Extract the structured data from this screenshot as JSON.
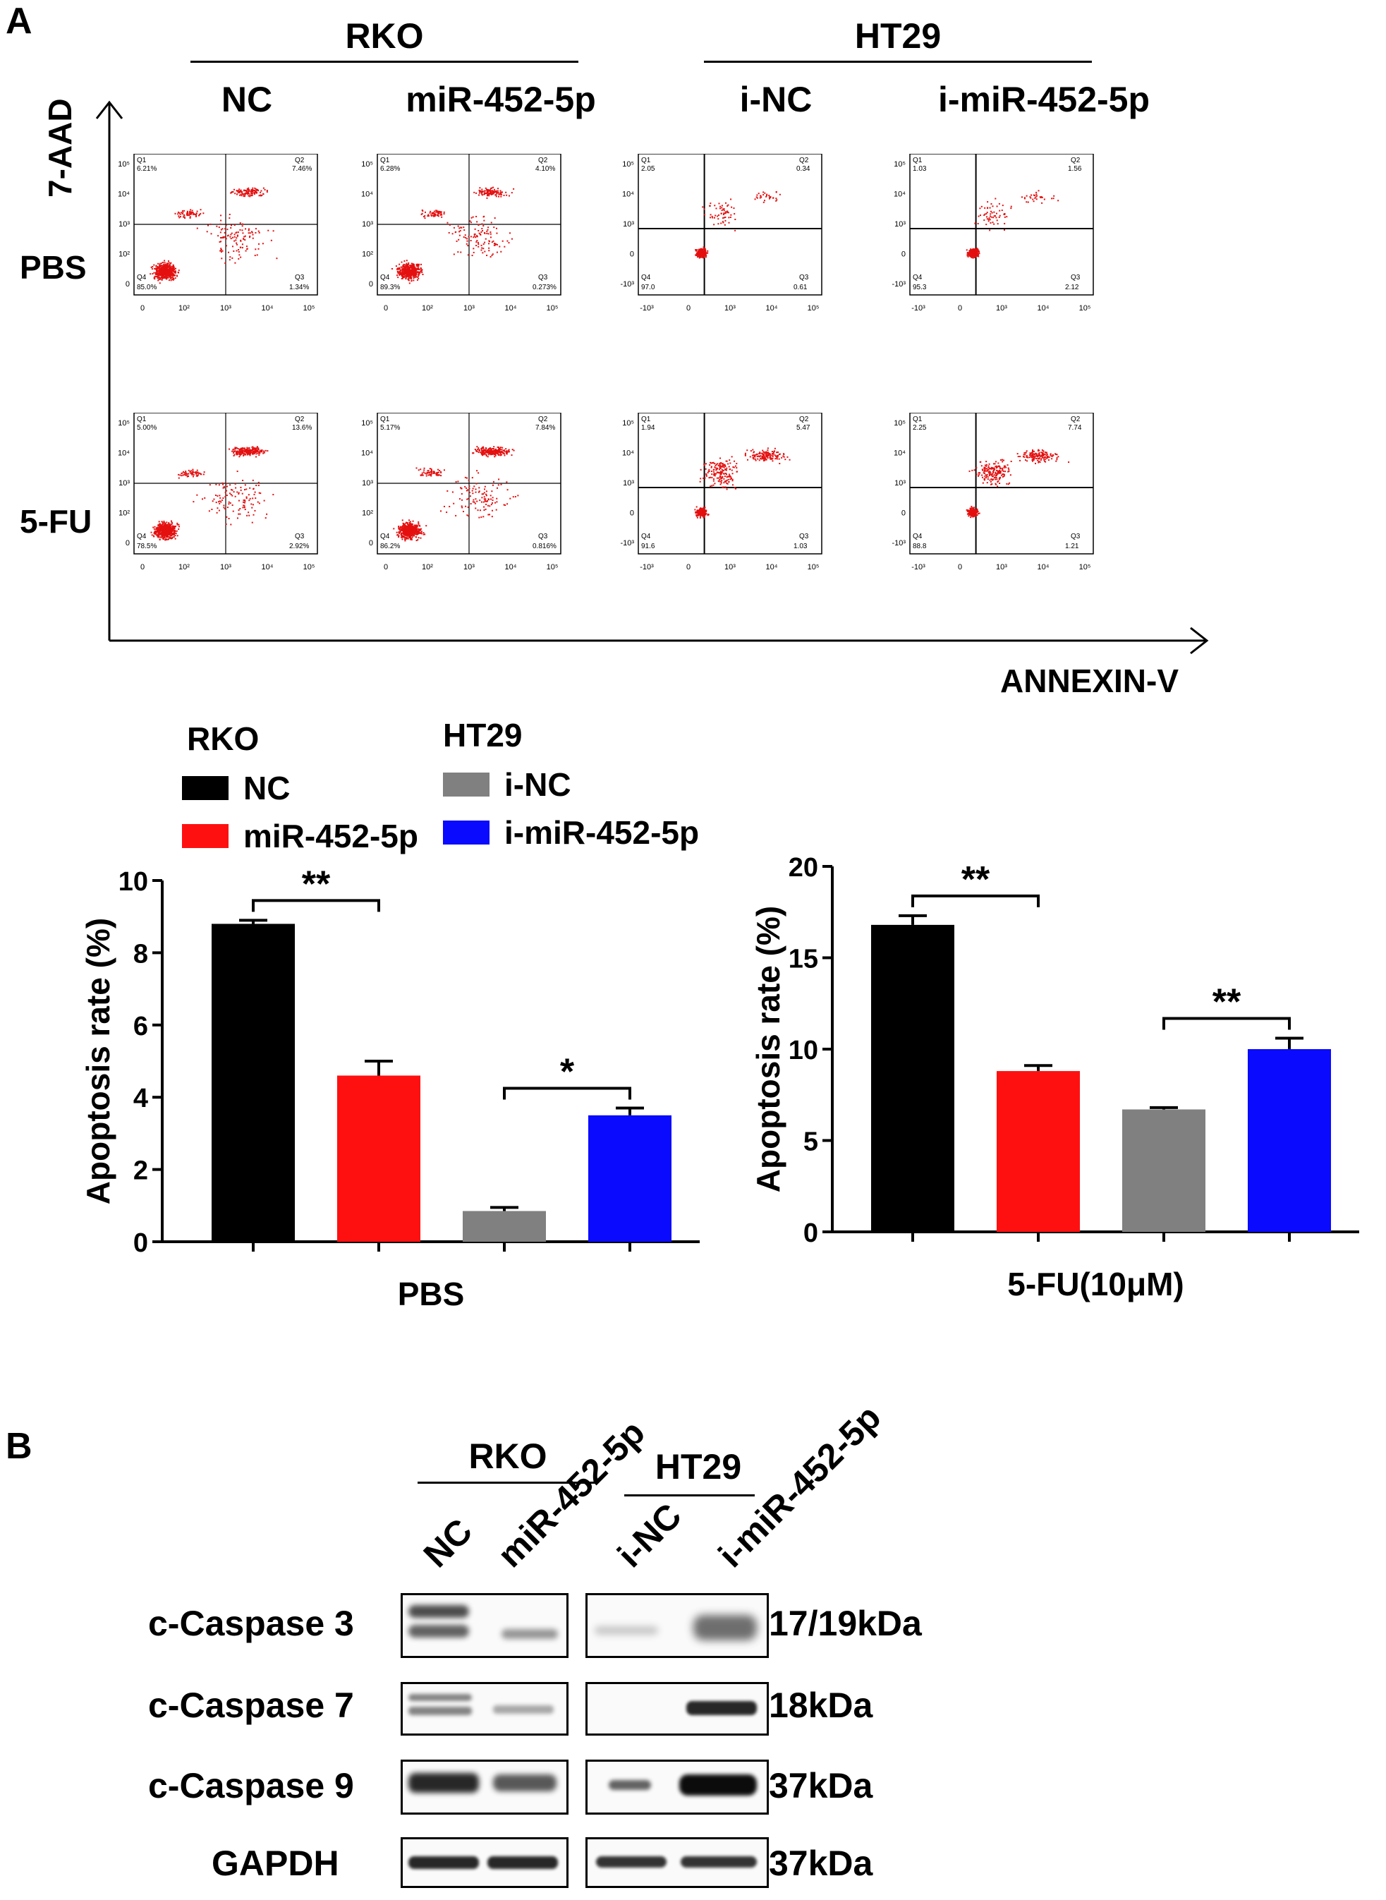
{
  "panel_a": {
    "label": "A",
    "groups": [
      {
        "name": "RKO",
        "conditions": [
          "NC",
          "miR-452-5p"
        ]
      },
      {
        "name": "HT29",
        "conditions": [
          "i-NC",
          "i-miR-452-5p"
        ]
      }
    ],
    "row_labels": [
      "PBS",
      "5-FU"
    ],
    "y_axis_label": "7-AAD",
    "x_axis_label": "ANNEXIN-V",
    "flow_plots": [
      {
        "row": "PBS",
        "col": "NC",
        "q1": "6.21%",
        "q2": "7.46%",
        "q3": "1.34%",
        "q4": "85.0%"
      },
      {
        "row": "PBS",
        "col": "miR-452-5p",
        "q1": "6.28%",
        "q2": "4.10%",
        "q3": "0.273%",
        "q4": "89.3%"
      },
      {
        "row": "PBS",
        "col": "i-NC",
        "q1": "2.05",
        "q2": "0.34",
        "q3": "0.61",
        "q4": "97.0"
      },
      {
        "row": "PBS",
        "col": "i-miR-452-5p",
        "q1": "1.03",
        "q2": "1.56",
        "q3": "2.12",
        "q4": "95.3"
      },
      {
        "row": "5-FU",
        "col": "NC",
        "q1": "5.00%",
        "q2": "13.6%",
        "q3": "2.92%",
        "q4": "78.5%"
      },
      {
        "row": "5-FU",
        "col": "miR-452-5p",
        "q1": "5.17%",
        "q2": "7.84%",
        "q3": "0.816%",
        "q4": "86.2%"
      },
      {
        "row": "5-FU",
        "col": "i-NC",
        "q1": "1.94",
        "q2": "5.47",
        "q3": "1.03",
        "q4": "91.6"
      },
      {
        "row": "5-FU",
        "col": "i-miR-452-5p",
        "q1": "2.25",
        "q2": "7.74",
        "q3": "1.21",
        "q4": "88.8"
      }
    ],
    "quadrant_names": [
      "Q1",
      "Q2",
      "Q3",
      "Q4"
    ],
    "flow_ticks_rko": {
      "y": [
        "10⁵",
        "10⁴",
        "10³",
        "10²",
        "0"
      ],
      "x": [
        "0",
        "10²",
        "10³",
        "10⁴",
        "10⁵"
      ]
    },
    "flow_ticks_ht29": {
      "y": [
        "10⁵",
        "10⁴",
        "10³",
        "0",
        "-10³"
      ],
      "x": [
        "-10³",
        "0",
        "10³",
        "10⁴",
        "10⁵"
      ]
    },
    "legend": {
      "group1": "RKO",
      "group2": "HT29",
      "items": [
        {
          "label": "NC",
          "color": "#000000"
        },
        {
          "label": "miR-452-5p",
          "color": "#ff1010"
        },
        {
          "label": "i-NC",
          "color": "#808080"
        },
        {
          "label": "i-miR-452-5p",
          "color": "#0a0aff"
        }
      ]
    }
  },
  "chart_data": [
    {
      "type": "bar",
      "categories": [
        "NC",
        "miR-452-5p",
        "i-NC",
        "i-miR-452-5p"
      ],
      "values": [
        8.8,
        4.6,
        0.85,
        3.5
      ],
      "errors": [
        0.1,
        0.4,
        0.1,
        0.2
      ],
      "colors": [
        "#000000",
        "#ff1010",
        "#808080",
        "#0a0aff"
      ],
      "xlabel": "PBS",
      "ylabel": "Apoptosis rate (%)",
      "ylim": [
        0,
        10
      ],
      "yticks": [
        "0",
        "2",
        "4",
        "6",
        "8",
        "10"
      ],
      "significance": [
        {
          "from": 0,
          "to": 1,
          "label": "**"
        },
        {
          "from": 2,
          "to": 3,
          "label": "*"
        }
      ]
    },
    {
      "type": "bar",
      "categories": [
        "NC",
        "miR-452-5p",
        "i-NC",
        "i-miR-452-5p"
      ],
      "values": [
        16.8,
        8.8,
        6.7,
        10.0
      ],
      "errors": [
        0.5,
        0.3,
        0.1,
        0.6
      ],
      "colors": [
        "#000000",
        "#ff1010",
        "#808080",
        "#0a0aff"
      ],
      "xlabel": "5-FU(10μM)",
      "ylabel": "Apoptosis rate (%)",
      "ylim": [
        0,
        20
      ],
      "yticks": [
        "0",
        "5",
        "10",
        "15",
        "20"
      ],
      "significance": [
        {
          "from": 0,
          "to": 1,
          "label": "**"
        },
        {
          "from": 2,
          "to": 3,
          "label": "**"
        }
      ]
    }
  ],
  "panel_b": {
    "label": "B",
    "group1": "RKO",
    "group2": "HT29",
    "lanes": [
      "NC",
      "miR-452-5p",
      "i-NC",
      "i-miR-452-5p"
    ],
    "rows": [
      {
        "protein": "c-Caspase 3",
        "size": "17/19kDa"
      },
      {
        "protein": "c-Caspase 7",
        "size": "18kDa"
      },
      {
        "protein": "c-Caspase 9",
        "size": "37kDa"
      },
      {
        "protein": "GAPDH",
        "size": "37kDa"
      }
    ]
  }
}
